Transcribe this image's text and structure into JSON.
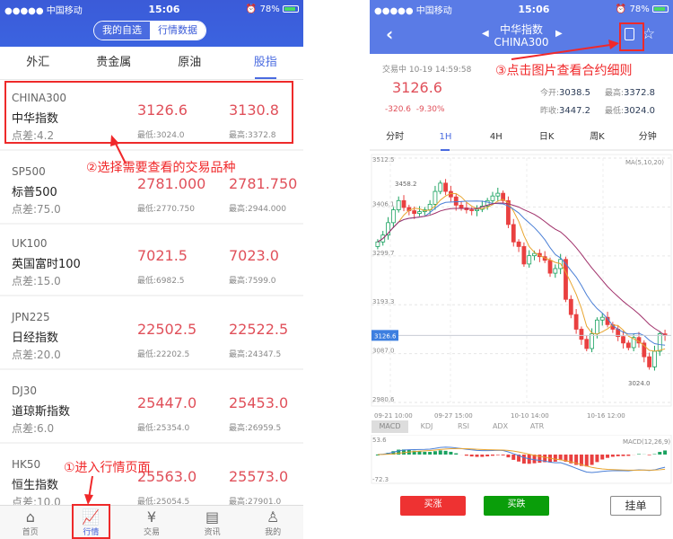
{
  "status": {
    "carrier": "●●●●● 中国移动",
    "time": "15:06",
    "battery": "78%",
    "battery_level": 78
  },
  "left": {
    "segment": {
      "selected": "我的自选",
      "other": "行情数据"
    },
    "categories": [
      {
        "label": "外汇"
      },
      {
        "label": "贵金属"
      },
      {
        "label": "原油"
      },
      {
        "label": "股指",
        "active": true
      }
    ],
    "rows": [
      {
        "code": "CHINA300",
        "name": "中华指数",
        "spread": "点差:4.2",
        "bid": "3126.6",
        "ask": "3130.8",
        "low": "最低:3024.0",
        "high": "最高:3372.8"
      },
      {
        "code": "SP500",
        "name": "标普500",
        "spread": "点差:75.0",
        "bid": "2781.000",
        "ask": "2781.750",
        "low": "最低:2770.750",
        "high": "最高:2944.000"
      },
      {
        "code": "UK100",
        "name": "英国富时100",
        "spread": "点差:15.0",
        "bid": "7021.5",
        "ask": "7023.0",
        "low": "最低:6982.5",
        "high": "最高:7599.0"
      },
      {
        "code": "JPN225",
        "name": "日经指数",
        "spread": "点差:20.0",
        "bid": "22502.5",
        "ask": "22522.5",
        "low": "最低:22202.5",
        "high": "最高:24347.5"
      },
      {
        "code": "DJ30",
        "name": "道琼斯指数",
        "spread": "点差:6.0",
        "bid": "25447.0",
        "ask": "25453.0",
        "low": "最低:25354.0",
        "high": "最高:26959.5"
      },
      {
        "code": "HK50",
        "name": "恒生指数",
        "spread": "点差:10.0",
        "bid": "25563.0",
        "ask": "25573.0",
        "low": "最低:25054.5",
        "high": "最高:27901.0"
      }
    ],
    "tabbar": [
      {
        "label": "首页",
        "icon": "home-icon",
        "glyph": "⌂"
      },
      {
        "label": "行情",
        "icon": "trend-chart-icon",
        "glyph": "📈",
        "active": true
      },
      {
        "label": "交易",
        "icon": "yen-exchange-icon",
        "glyph": "¥"
      },
      {
        "label": "资讯",
        "icon": "news-icon",
        "glyph": "▤"
      },
      {
        "label": "我的",
        "icon": "user-icon",
        "glyph": "♙"
      }
    ],
    "annotations": {
      "step1": "①进入行情页面",
      "step2": "②选择需要查看的交易品种"
    }
  },
  "right": {
    "header": {
      "name": "中华指数",
      "code": "CHINA300",
      "back": "‹",
      "prev": "◀",
      "next": "▶"
    },
    "annotation": "③点击图片查看合约细则",
    "info": {
      "status": "交易中 10-19 14:59:58",
      "price": "3126.6",
      "change": "-320.6",
      "change_pct": "-9.30%",
      "open_label": "今开:",
      "open": "3038.5",
      "high_label": "最高:",
      "high": "3372.8",
      "prev_label": "昨收:",
      "prev_close": "3447.2",
      "low_label": "最低:",
      "low": "3024.0"
    },
    "period_tabs": [
      {
        "label": "分时"
      },
      {
        "label": "1H",
        "active": true
      },
      {
        "label": "4H"
      },
      {
        "label": "日K"
      },
      {
        "label": "周K"
      },
      {
        "label": "分钟"
      }
    ],
    "indicator_tabs": [
      {
        "label": "MACD",
        "active": true
      },
      {
        "label": "KDJ"
      },
      {
        "label": "RSI"
      },
      {
        "label": "ADX"
      },
      {
        "label": "ATR"
      }
    ],
    "buttons": {
      "buy_up": "买涨",
      "buy_down": "买跌",
      "order": "挂单"
    },
    "colors": {
      "up": "#e94040",
      "down": "#1aa260",
      "ma5": "#e8a530",
      "ma10": "#4a7fd6",
      "ma20": "#a0306a",
      "buy_up": "#ee3232",
      "buy_down": "#0a9e0a"
    }
  },
  "chart_data": {
    "type": "candlestick",
    "y_ticks": [
      "3512.5",
      "3406.1",
      "3299.7",
      "3193.3",
      "3087.0",
      "2980.6"
    ],
    "ylim": [
      2980.6,
      3512.5
    ],
    "x_ticks": [
      "09-21 10:00",
      "09-27 15:00",
      "10-10 14:00",
      "10-16 12:00"
    ],
    "ma_label": "MA(5,10,20)",
    "high_label": "3458.2",
    "low_label": "3024.0",
    "current_label": "3126.6",
    "current": 3126.6,
    "closes": [
      3330,
      3345,
      3372,
      3400,
      3420,
      3405,
      3398,
      3392,
      3396,
      3400,
      3412,
      3440,
      3458,
      3440,
      3428,
      3410,
      3404,
      3400,
      3398,
      3401,
      3408,
      3420,
      3430,
      3436,
      3420,
      3368,
      3330,
      3320,
      3282,
      3300,
      3305,
      3298,
      3290,
      3262,
      3272,
      3292,
      3205,
      3172,
      3140,
      3118,
      3098,
      3130,
      3160,
      3166,
      3150,
      3140,
      3124,
      3110,
      3100,
      3122,
      3110,
      3080,
      3058,
      3092,
      3130,
      3126.6
    ],
    "macd": {
      "label": "MACD(12,26,9)",
      "max": "53.6",
      "min": "-72.3"
    }
  }
}
